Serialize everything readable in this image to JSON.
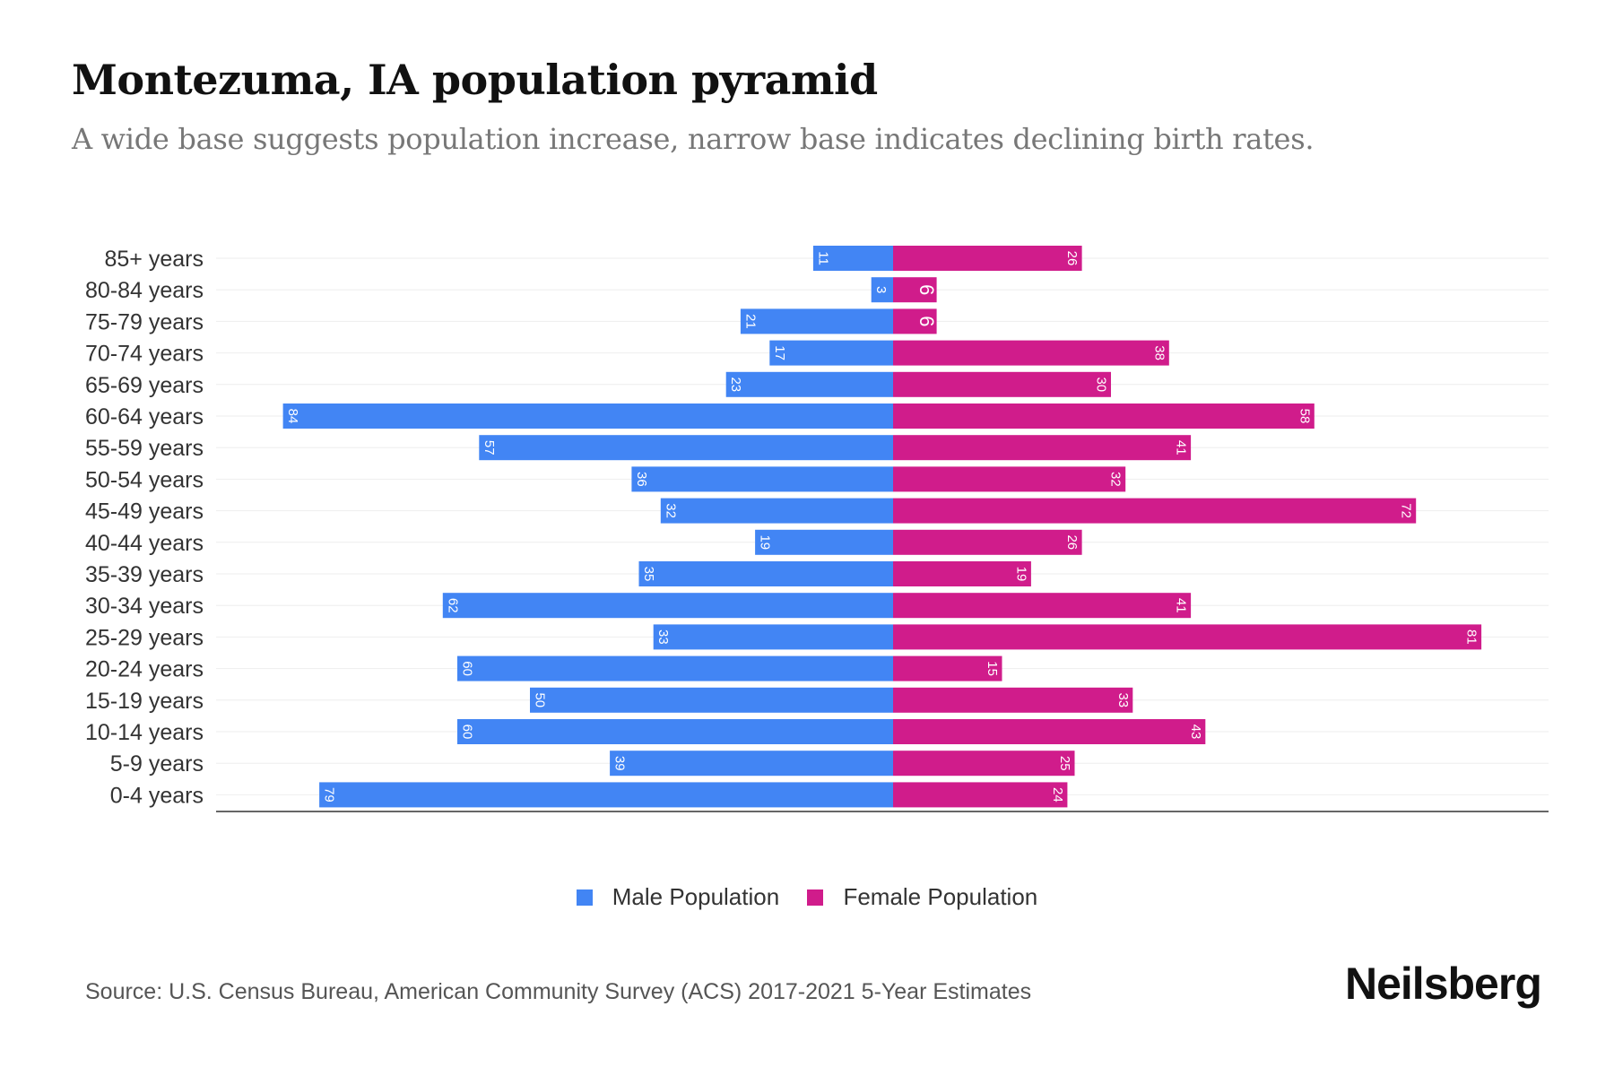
{
  "header": {
    "title": "Montezuma, IA population pyramid",
    "subtitle": "A wide base suggests population increase, narrow base indicates declining birth rates."
  },
  "chart_data": {
    "type": "bar",
    "orientation": "horizontal-pyramid",
    "categories": [
      "85+ years",
      "80-84 years",
      "75-79 years",
      "70-74 years",
      "65-69 years",
      "60-64 years",
      "55-59 years",
      "50-54 years",
      "45-49 years",
      "40-44 years",
      "35-39 years",
      "30-34 years",
      "25-29 years",
      "20-24 years",
      "15-19 years",
      "10-14 years",
      "5-9 years",
      "0-4 years"
    ],
    "series": [
      {
        "name": "Male Population",
        "color": "#4285f4",
        "values": [
          11,
          3,
          21,
          17,
          23,
          84,
          57,
          36,
          32,
          19,
          35,
          62,
          33,
          60,
          50,
          60,
          39,
          79
        ]
      },
      {
        "name": "Female Population",
        "color": "#d01c8b",
        "values": [
          26,
          6,
          6,
          38,
          30,
          58,
          41,
          32,
          72,
          26,
          19,
          41,
          81,
          15,
          33,
          43,
          25,
          24
        ]
      }
    ],
    "xlim": [
      -90,
      90
    ],
    "grid": true,
    "legend_position": "bottom"
  },
  "legend": {
    "male": "Male Population",
    "female": "Female Population"
  },
  "footer": {
    "source": "Source: U.S. Census Bureau, American Community Survey (ACS) 2017-2021 5-Year Estimates",
    "logo": "Neilsberg"
  }
}
